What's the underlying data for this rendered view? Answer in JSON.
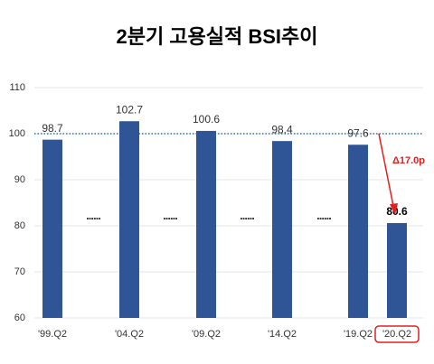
{
  "chart_data": {
    "type": "bar",
    "title": "2분기 고용실적 BSI추이",
    "categories": [
      "'99.Q2",
      "'04.Q2",
      "'09.Q2",
      "'14.Q2",
      "'19.Q2",
      "'20.Q2"
    ],
    "values": [
      98.7,
      102.7,
      100.6,
      98.4,
      97.6,
      80.6
    ],
    "color": "#2f5597",
    "ylim": [
      60,
      110
    ],
    "yticks": [
      60,
      70,
      80,
      90,
      100,
      110
    ],
    "grid": true,
    "reference_line": 100,
    "gap_marker": "......",
    "annotation": "Δ17.0p",
    "annotation_color": "#e02020"
  }
}
